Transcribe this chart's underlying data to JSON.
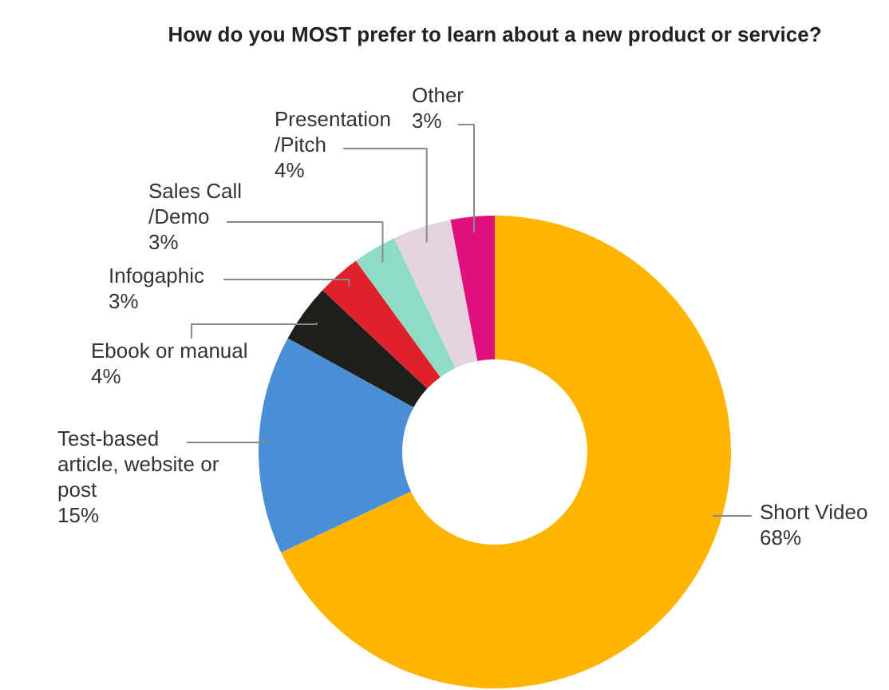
{
  "chart_data": {
    "type": "donut",
    "title": "How do you MOST prefer to learn about a new product or service?",
    "categories": [
      "Short Video",
      "Test-based\narticle, website or\npost",
      "Ebook or manual",
      "Infogaphic",
      "Sales Call\n/Demo",
      "Presentation\n/Pitch",
      "Other"
    ],
    "values": [
      68,
      15,
      4,
      3,
      3,
      4,
      3
    ],
    "value_labels": [
      "68%",
      "15%",
      "4%",
      "3%",
      "3%",
      "4%",
      "3%"
    ],
    "colors": [
      "#ffb400",
      "#4a8fd6",
      "#1e1e1a",
      "#e0202a",
      "#8edcc6",
      "#e5d3df",
      "#e0117f"
    ]
  }
}
